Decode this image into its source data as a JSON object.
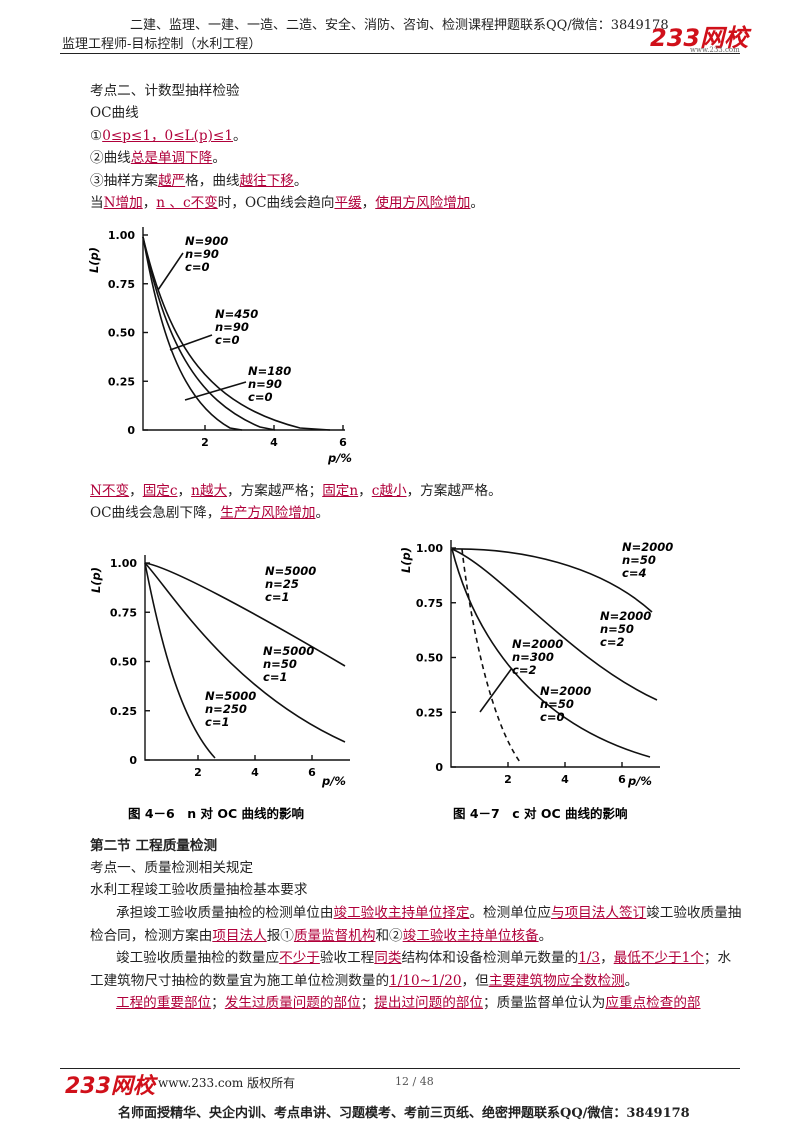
{
  "header": {
    "ads": "二建、监理、一建、一造、二造、安全、消防、咨询、检测课程押题联系QQ/微信：3849178",
    "subject": "监理工程师-目标控制（水利工程）",
    "logo": "233网校",
    "site": "www.233.com"
  },
  "body": [
    {
      "runs": [
        "考点二、计数型抽样检验"
      ]
    },
    {
      "runs": [
        "OC曲线"
      ]
    },
    {
      "runs": [
        "①",
        {
          "u": "0≤p≤1，0≤L(p)≤1"
        },
        "。"
      ]
    },
    {
      "runs": [
        "②曲线",
        {
          "u": "总是单调下降"
        },
        "。"
      ]
    },
    {
      "runs": [
        "③抽样方案",
        {
          "u": "越严"
        },
        "格，曲线",
        {
          "u": "越往下移"
        },
        "。"
      ]
    },
    {
      "runs": [
        "当",
        {
          "u": "N增加"
        },
        "，",
        {
          "u": "n 、c不变"
        },
        "时，OC曲线会趋向",
        {
          "u": "平缓"
        },
        "，",
        {
          "u": "使用方风险增加"
        },
        "。"
      ]
    },
    {
      "runs": [
        {
          "u": "N不变"
        },
        "，",
        {
          "u": "固定c"
        },
        "，",
        {
          "u": "n越大"
        },
        "，方案越严格；",
        {
          "u": "固定n"
        },
        "，",
        {
          "u": "c越小"
        },
        "，方案越严格。"
      ]
    },
    {
      "runs": [
        "OC曲线会急剧下降，",
        {
          "u": "生产方风险增加"
        },
        "。"
      ]
    },
    {
      "runs": [
        "第二节 工程质量检测"
      ]
    },
    {
      "runs": [
        "考点一、质量检测相关规定"
      ]
    },
    {
      "runs": [
        "水利工程竣工验收质量抽检基本要求"
      ]
    },
    {
      "runs": [
        "承担竣工验收质量抽检的检测单位由",
        {
          "u": "竣工验收主持单位择定"
        },
        "。检测单位应",
        {
          "u": "与项目法人签订"
        },
        "竣工验收质量抽检合同，检测方案由",
        {
          "u": "项目法人"
        },
        "报①",
        {
          "u": "质量监督机构"
        },
        "和②",
        {
          "u": "竣工验收主持单位核备"
        },
        "。"
      ]
    },
    {
      "runs": [
        "竣工验收质量抽检的数量应",
        {
          "u": "不少于"
        },
        "验收工程",
        {
          "u": "同类"
        },
        "结构体和设备检测单元数量的",
        {
          "u": "1/3"
        },
        "，",
        {
          "u": "最低不少于1个"
        },
        "；水工建筑物尺寸抽检的数量宜为施工单位检测数量的",
        {
          "u": "1/10~1/20"
        },
        "，但",
        {
          "u": "主要建筑物应全数检测"
        },
        "。"
      ]
    },
    {
      "runs": [
        {
          "u": "工程的重要部位"
        },
        "；",
        {
          "u": "发生过质量问题的部位"
        },
        "；",
        {
          "u": "提出过问题的部位"
        },
        "；质量监督单位认为",
        {
          "u": "应重点检查的部"
        }
      ]
    }
  ],
  "figures": [
    {
      "y_label": "L(p)",
      "x_label": "p/%",
      "yticks": [
        "1.00",
        "0.75",
        "0.50",
        "0.25",
        "0"
      ],
      "xticks": [
        "2",
        "4",
        "6"
      ],
      "curve_labels": [
        [
          "N=900",
          "n=90",
          "c=0"
        ],
        [
          "N=450",
          "n=90",
          "c=0"
        ],
        [
          "N=180",
          "n=90",
          "c=0"
        ]
      ]
    },
    {
      "y_label": "L(p)",
      "x_label": "p/%",
      "yticks": [
        "1.00",
        "0.75",
        "0.50",
        "0.25",
        "0"
      ],
      "xticks": [
        "2",
        "4",
        "6"
      ],
      "curve_labels": [
        [
          "N=5000",
          "n=25",
          "c=1"
        ],
        [
          "N=5000",
          "n=50",
          "c=1"
        ],
        [
          "N=5000",
          "n=250",
          "c=1"
        ]
      ],
      "caption": "图 4－6　n 对 OC 曲线的影响"
    },
    {
      "y_label": "L(p)",
      "x_label": "p/%",
      "yticks": [
        "1.00",
        "0.75",
        "0.50",
        "0.25",
        "0"
      ],
      "xticks": [
        "2",
        "4",
        "6"
      ],
      "curve_labels": [
        [
          "N=2000",
          "n=50",
          "c=4"
        ],
        [
          "N=2000",
          "n=50",
          "c=2"
        ],
        [
          "N=2000",
          "n=300",
          "c=2"
        ],
        [
          "N=2000",
          "n=50",
          "c=0"
        ]
      ],
      "caption": "图 4－7　c 对 OC 曲线的影响"
    }
  ],
  "footer": {
    "logo": "233网校",
    "copyright": "www.233.com 版权所有",
    "page": "12 / 48",
    "ads": "名师面授精华、央企内训、考点串讲、习题模考、考前三页纸、绝密押题联系QQ/微信：3849178"
  }
}
